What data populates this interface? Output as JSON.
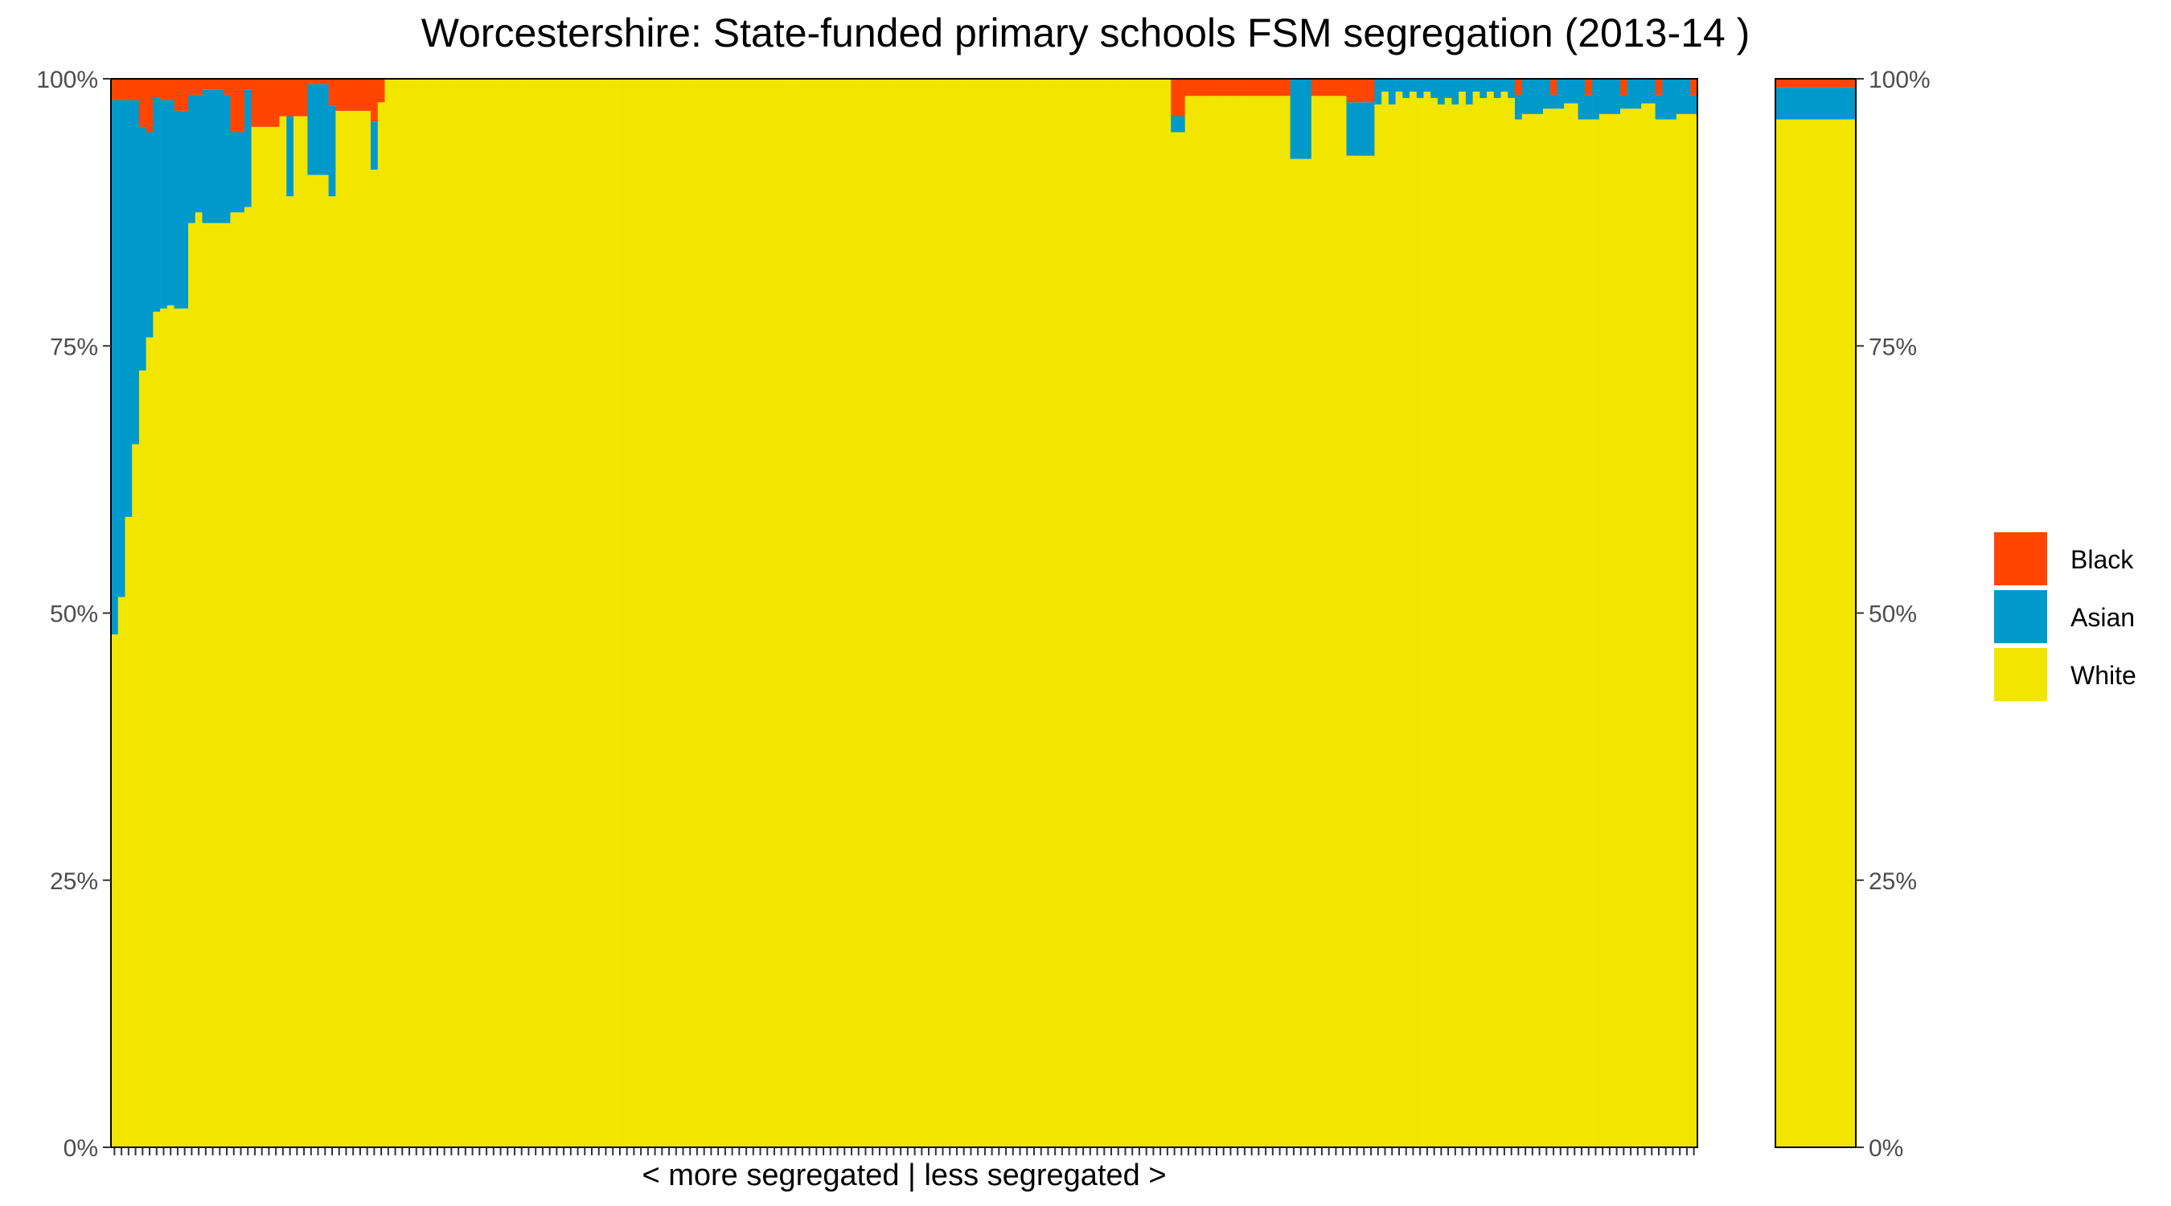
{
  "chart_data": {
    "type": "bar",
    "stacked": true,
    "title": "Worcestershire: State-funded primary schools FSM segregation (2013-14 )",
    "xlabel": "< more segregated | less segregated >",
    "ylabel": "",
    "ylim": [
      0,
      100
    ],
    "ytick_labels": [
      "0%",
      "25%",
      "50%",
      "75%",
      "100%"
    ],
    "ytick_values": [
      0,
      25,
      50,
      75,
      100
    ],
    "grid": false,
    "legend_position": "right",
    "legend": [
      "Black",
      "Asian",
      "White"
    ],
    "colors": {
      "White": "#f2e500",
      "Asian": "#0099cc",
      "Black": "#ff4500"
    },
    "school_bar_count": 226,
    "series": [
      {
        "name": "White",
        "values": [
          48,
          51.5,
          59,
          65.8,
          72.7,
          75.8,
          78.2,
          78.5,
          78.8,
          78.5,
          78.5,
          86.5,
          87.5,
          86.5,
          86.5,
          86.5,
          86.5,
          87.5,
          87.5,
          88,
          95.5,
          95.5,
          95.5,
          95.5,
          96.5,
          89,
          96.5,
          96.5,
          91,
          91,
          91,
          89,
          97,
          97,
          97,
          97,
          97,
          91.5,
          97.8
        ]
      },
      {
        "name": "Asian",
        "values": [
          50,
          46.5,
          39,
          32.2,
          22.8,
          19.2,
          20,
          19.5,
          19.2,
          18.5,
          18.5,
          12,
          11,
          12.5,
          12.5,
          12.5,
          12,
          7.5,
          7.5,
          11,
          0,
          0,
          0,
          0,
          0,
          7.5,
          0,
          0,
          8.5,
          8.5,
          8.5,
          8.5,
          0,
          0,
          0,
          0,
          0,
          4.5,
          0
        ]
      },
      {
        "name": "Black",
        "values": [
          2,
          2,
          2,
          2,
          4.5,
          5,
          1.8,
          2,
          2,
          3,
          3,
          1.5,
          1.5,
          1,
          1,
          1,
          1.5,
          5,
          5,
          1,
          4.5,
          4.5,
          4.5,
          4.5,
          3.5,
          3.5,
          3.5,
          3.5,
          0.5,
          0.5,
          0.5,
          2.5,
          3,
          3,
          3,
          3,
          3,
          4,
          2.2
        ]
      }
    ],
    "summary_bar": {
      "White": 96.2,
      "Asian": 3,
      "Black": 0.8
    }
  }
}
